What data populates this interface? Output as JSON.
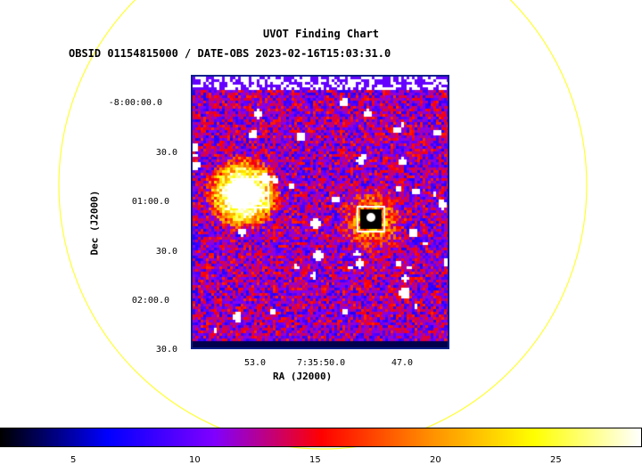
{
  "chart": {
    "title": "UVOT Finding Chart",
    "subtitle": "OBSID 01154815000 / DATE-OBS 2023-02-16T15:03:31.0",
    "xlabel": "RA (J2000)",
    "ylabel": "Dec (J2000)",
    "x_ticks": [
      "53.0",
      "7:35:50.0",
      "47.0"
    ],
    "y_ticks": [
      "-8:00:00.0",
      "30.0",
      "01:00.0",
      "30.0",
      "02:00.0",
      "30.0"
    ],
    "colorbar_ticks": [
      "5",
      "10",
      "15",
      "20",
      "25"
    ]
  },
  "colors": {
    "circle": "#ffff33",
    "frame": "#0b1f8a",
    "colormap": [
      "#000000",
      "#0000ff",
      "#7f00ff",
      "#ff0000",
      "#ff8c00",
      "#ffff00",
      "#ffffff"
    ]
  },
  "chart_data": {
    "type": "heatmap",
    "title": "UVOT Finding Chart",
    "subtitle": "OBSID 01154815000 / DATE-OBS 2023-02-16T15:03:31.0",
    "xlabel": "RA (J2000)",
    "ylabel": "Dec (J2000)",
    "colorbar_range": [
      2,
      28
    ],
    "colormap": "hot-blue (black-blue-purple-red-orange-yellow-white)"
  }
}
